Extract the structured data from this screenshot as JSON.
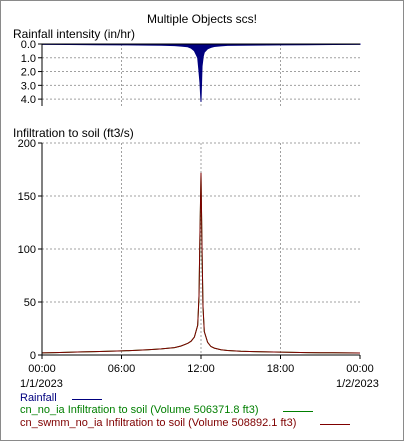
{
  "title": "Multiple Objects scs!",
  "colors": {
    "rainfall": "#00007f",
    "green": "#007f00",
    "maroon": "#7f0000",
    "grid": "#a0a0a0",
    "axis": "#000000"
  },
  "chart_data": [
    {
      "type": "bar",
      "title": "Rainfall intensity (in/hr)",
      "inverted_y": true,
      "ylim": [
        0,
        4.5
      ],
      "yticks": [
        "0.0",
        "1.0",
        "2.0",
        "3.0",
        "4.0"
      ],
      "ytick_values": [
        0,
        1,
        2,
        3,
        4
      ],
      "series": [
        {
          "name": "Rainfall",
          "color": "#00007f",
          "x_hours": [
            0,
            2,
            4,
            6,
            8,
            9,
            10,
            10.5,
            11,
            11.25,
            11.5,
            11.75,
            11.83,
            11.92,
            12.0,
            12.08,
            12.17,
            12.25,
            12.5,
            12.75,
            13,
            13.5,
            14,
            16,
            18,
            20,
            22,
            24
          ],
          "values": [
            0.03,
            0.04,
            0.05,
            0.06,
            0.08,
            0.09,
            0.12,
            0.15,
            0.2,
            0.3,
            0.5,
            1.0,
            1.8,
            2.8,
            4.2,
            1.6,
            0.9,
            0.6,
            0.35,
            0.25,
            0.18,
            0.14,
            0.1,
            0.08,
            0.06,
            0.05,
            0.04,
            0.03
          ]
        }
      ],
      "grid": true
    },
    {
      "type": "line",
      "title": "Infiltration to soil (ft3/s)",
      "ylim": [
        0,
        200
      ],
      "yticks": [
        "0",
        "50",
        "100",
        "150",
        "200"
      ],
      "ytick_values": [
        0,
        50,
        100,
        150,
        200
      ],
      "xlim_hours": [
        0,
        24
      ],
      "xtick_labels": [
        "00:00",
        "06:00",
        "12:00",
        "18:00",
        "00:00"
      ],
      "xtick_hours": [
        0,
        6,
        12,
        18,
        24
      ],
      "date_labels": [
        "1/1/2023",
        "1/2/2023"
      ],
      "x_hours": [
        0,
        1,
        2,
        3,
        4,
        5,
        6,
        7,
        8,
        9,
        10,
        10.5,
        11,
        11.25,
        11.5,
        11.75,
        11.85,
        11.92,
        12.0,
        12.08,
        12.15,
        12.25,
        12.5,
        12.75,
        13,
        13.5,
        14,
        15,
        16,
        17,
        18,
        19,
        20,
        21,
        22,
        23,
        24
      ],
      "series": [
        {
          "name": "cn_no_ia Infiltration to soil (Volume 506371.8 ft3)",
          "color": "#007f00",
          "values": [
            2.0,
            2.3,
            2.6,
            2.9,
            3.2,
            3.5,
            3.9,
            4.3,
            5.0,
            5.8,
            7.0,
            8.5,
            11,
            13,
            17,
            28,
            55,
            110,
            170,
            95,
            45,
            22,
            12,
            8,
            6.5,
            5.0,
            4.2,
            3.6,
            3.2,
            2.9,
            2.7,
            2.5,
            2.3,
            2.2,
            2.1,
            2.0,
            1.9
          ]
        },
        {
          "name": "cn_swmm_no_ia Infiltration to soil (Volume 508892.1 ft3)",
          "color": "#7f0000",
          "values": [
            2.0,
            2.3,
            2.6,
            2.9,
            3.2,
            3.5,
            3.9,
            4.3,
            5.0,
            5.8,
            7.0,
            8.5,
            11,
            13,
            17,
            28,
            56,
            112,
            172,
            96,
            46,
            22,
            12,
            8,
            6.5,
            5.0,
            4.2,
            3.6,
            3.2,
            2.9,
            2.7,
            2.5,
            2.3,
            2.2,
            2.1,
            2.0,
            1.9
          ]
        }
      ],
      "grid": true
    }
  ],
  "legend": [
    {
      "label": "Rainfall",
      "color": "#00007f"
    },
    {
      "label": "cn_no_ia Infiltration to soil (Volume 506371.8 ft3)",
      "color": "#007f00"
    },
    {
      "label": "cn_swmm_no_ia Infiltration to soil (Volume 508892.1 ft3)",
      "color": "#7f0000"
    }
  ]
}
